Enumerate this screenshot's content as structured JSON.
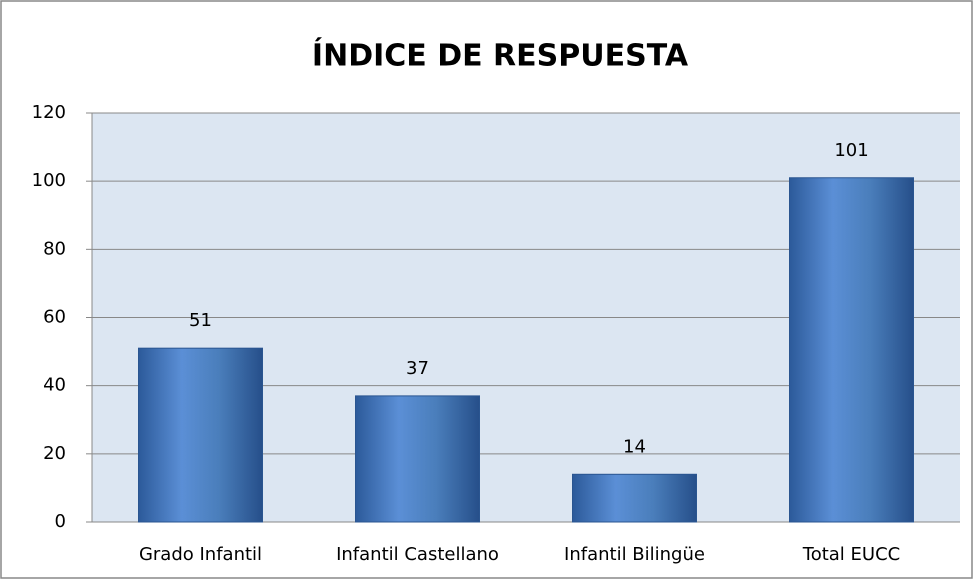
{
  "chart_data": {
    "type": "bar",
    "title": "ÍNDICE DE RESPUESTA",
    "categories": [
      "Grado Infantil",
      "Infantil Castellano",
      "Infantil Bilingüe",
      "Total EUCC"
    ],
    "values": [
      51,
      37,
      14,
      101
    ],
    "color": "#4a7ebb",
    "ylim": [
      0,
      120
    ],
    "yticks": [
      0,
      20,
      40,
      60,
      80,
      100,
      120
    ],
    "grid": true
  }
}
